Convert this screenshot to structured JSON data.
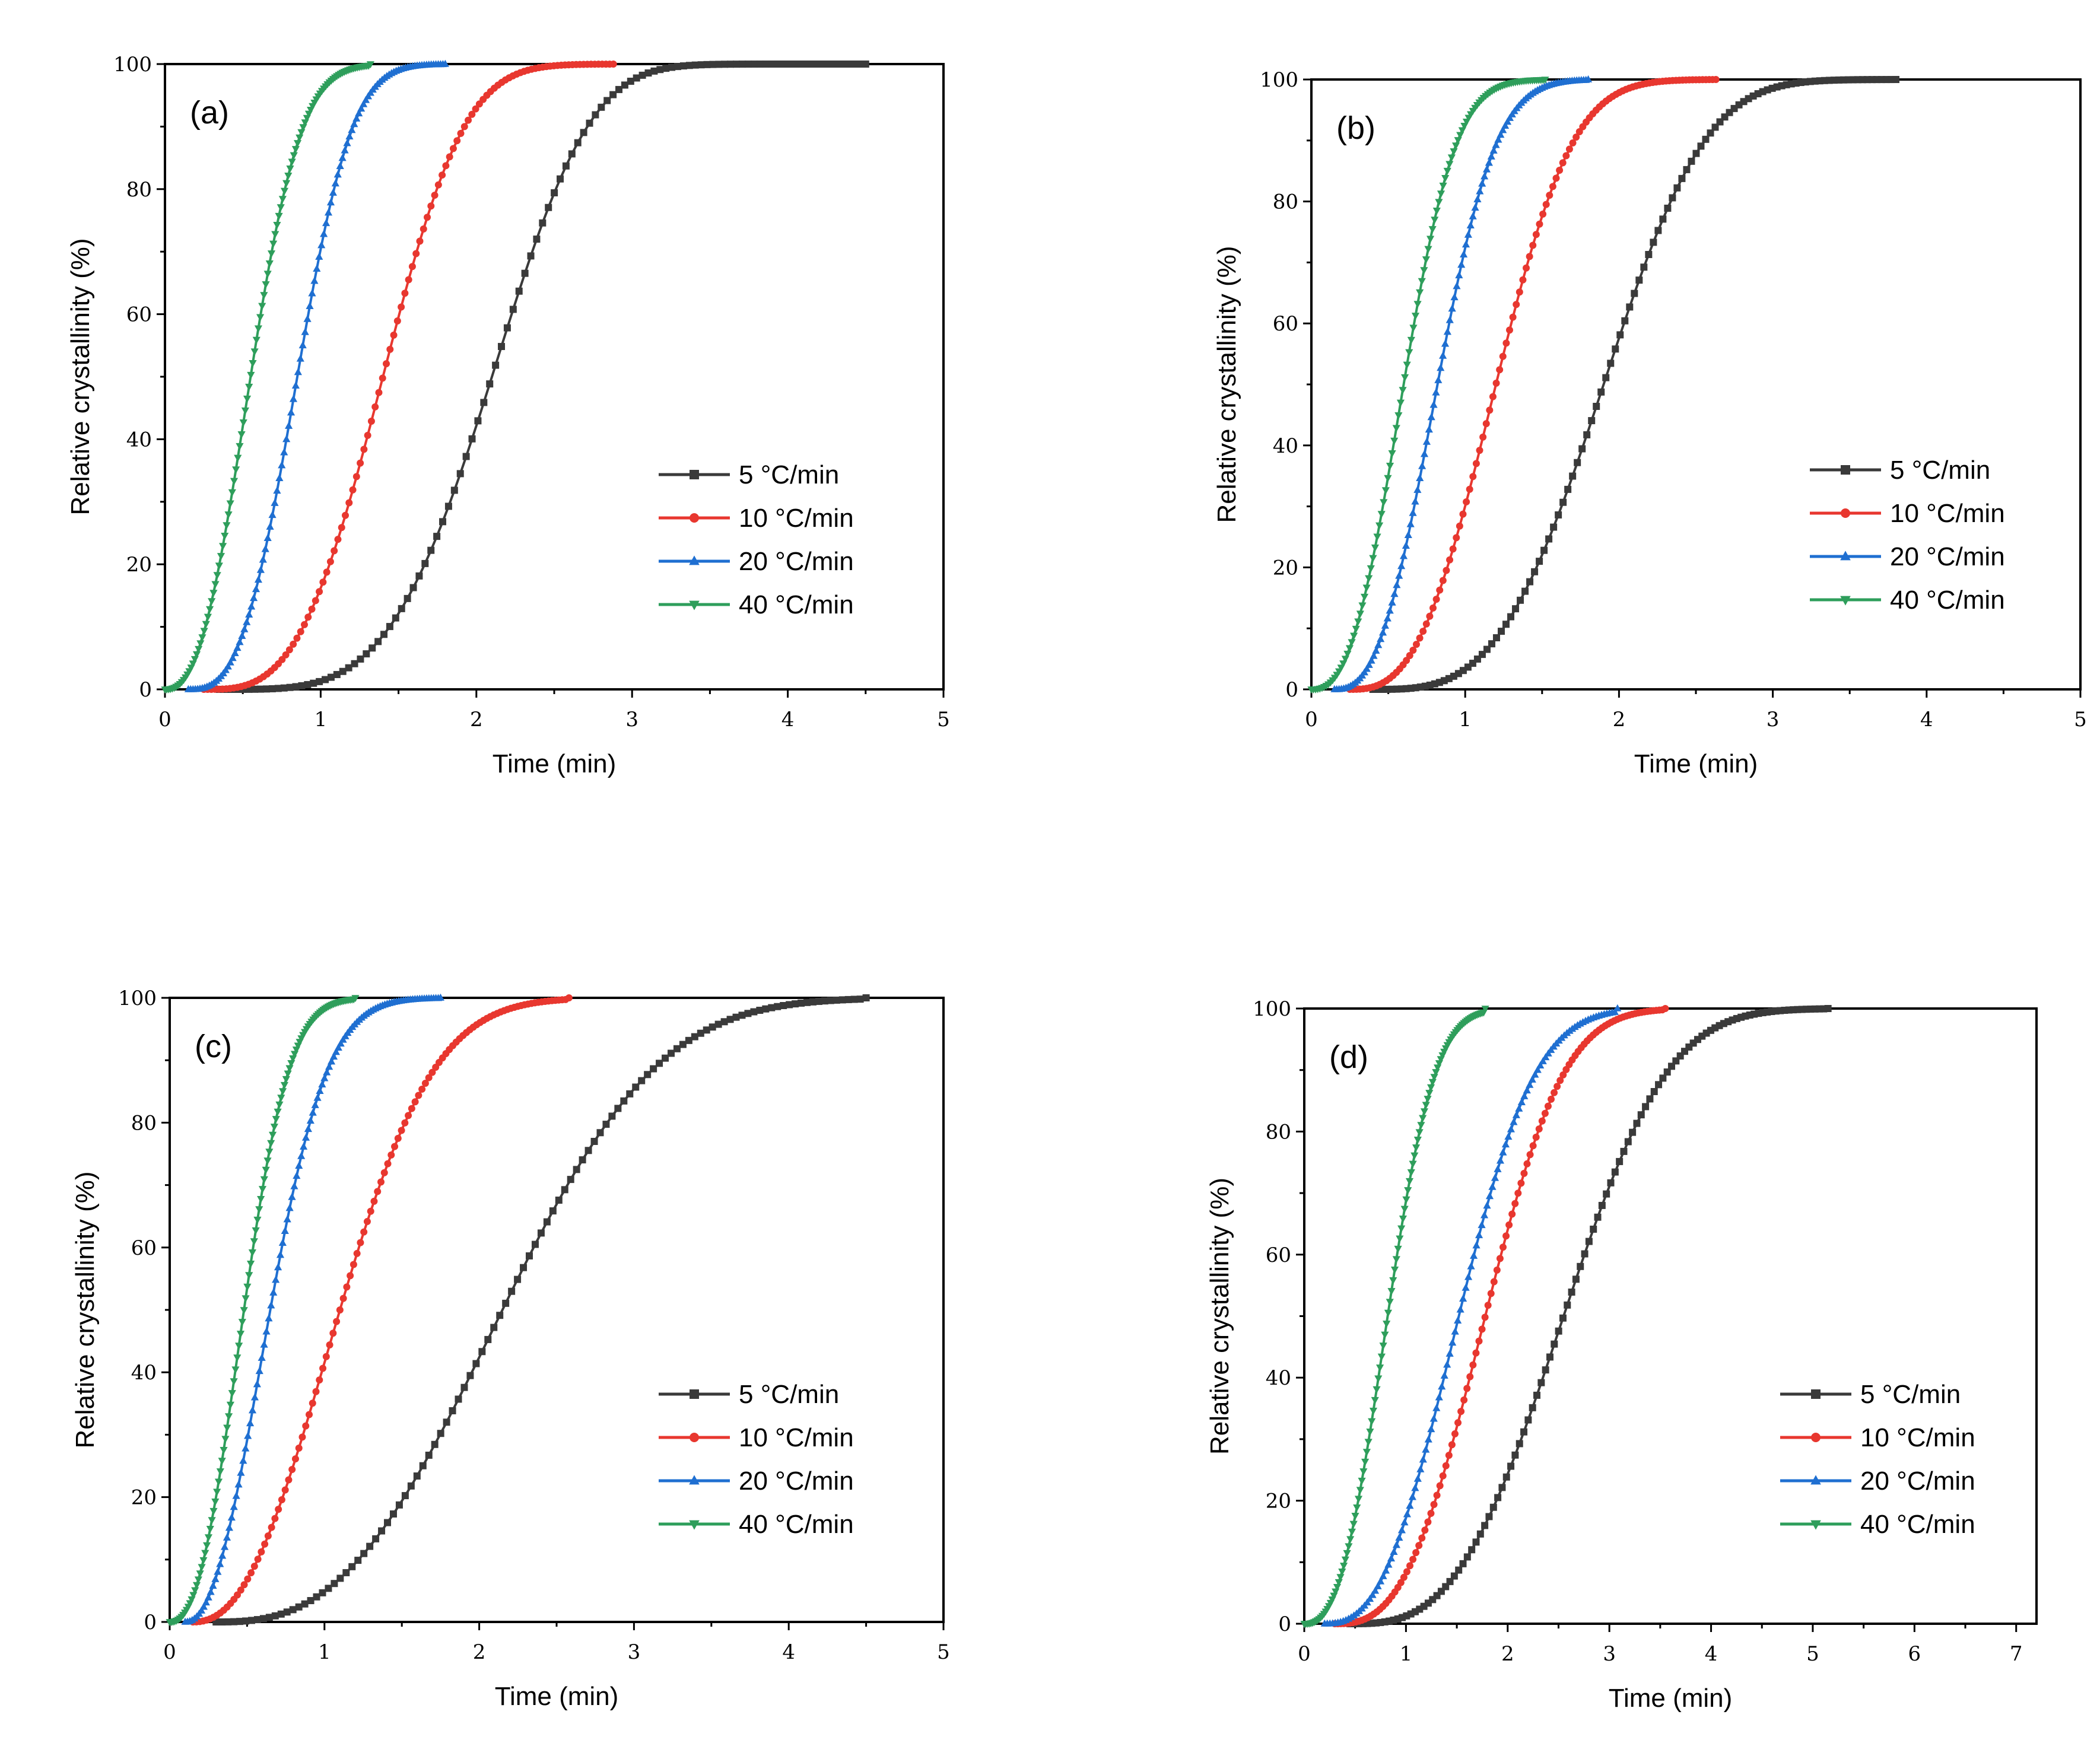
{
  "chart_data": [
    {
      "type": "line",
      "panel_label": "(a)",
      "xlabel": "Time (min)",
      "ylabel": "Relative crystallinity (%)",
      "xlim": [
        0,
        5
      ],
      "ylim": [
        0,
        100
      ],
      "x_ticks": [
        "0",
        "1",
        "2",
        "3",
        "4",
        "5"
      ],
      "y_ticks": [
        "0",
        "20",
        "40",
        "60",
        "80",
        "100"
      ],
      "legend_position": "center-right",
      "series": [
        {
          "name": "5 °C/min",
          "color": "#3a3a3a",
          "marker": "square",
          "t_start": 0.35,
          "t_half": 2.1,
          "t_end": 4.5,
          "n": 4.0
        },
        {
          "name": "10 °C/min",
          "color": "#e8372f",
          "marker": "circle",
          "t_start": 0.25,
          "t_half": 1.4,
          "t_end": 2.88,
          "n": 3.2
        },
        {
          "name": "20 °C/min",
          "color": "#1f6fd1",
          "marker": "triangle-up",
          "t_start": 0.15,
          "t_half": 0.85,
          "t_end": 1.8,
          "n": 2.9
        },
        {
          "name": "40 °C/min",
          "color": "#2e9e5b",
          "marker": "triangle-down",
          "t_start": 0.0,
          "t_half": 0.55,
          "t_end": 1.32,
          "n": 2.5
        }
      ]
    },
    {
      "type": "line",
      "panel_label": "(b)",
      "xlabel": "Time (min)",
      "ylabel": "Relative crystallinity (%)",
      "xlim": [
        0,
        5
      ],
      "ylim": [
        0,
        100
      ],
      "x_ticks": [
        "0",
        "1",
        "2",
        "3",
        "4",
        "5"
      ],
      "y_ticks": [
        "0",
        "20",
        "40",
        "60",
        "80",
        "100"
      ],
      "legend_position": "center-right",
      "series": [
        {
          "name": "5 °C/min",
          "color": "#3a3a3a",
          "marker": "square",
          "t_start": 0.4,
          "t_half": 1.9,
          "t_end": 3.8,
          "n": 3.3
        },
        {
          "name": "10 °C/min",
          "color": "#e8372f",
          "marker": "circle",
          "t_start": 0.25,
          "t_half": 1.2,
          "t_end": 2.63,
          "n": 2.8
        },
        {
          "name": "20 °C/min",
          "color": "#1f6fd1",
          "marker": "triangle-up",
          "t_start": 0.15,
          "t_half": 0.82,
          "t_end": 1.8,
          "n": 2.6
        },
        {
          "name": "40 °C/min",
          "color": "#2e9e5b",
          "marker": "triangle-down",
          "t_start": 0.0,
          "t_half": 0.6,
          "t_end": 1.52,
          "n": 2.6
        }
      ]
    },
    {
      "type": "line",
      "panel_label": "(c)",
      "xlabel": "Time (min)",
      "ylabel": "Relative crystallinity (%)",
      "xlim": [
        0,
        5
      ],
      "ylim": [
        0,
        100
      ],
      "x_ticks": [
        "0",
        "1",
        "2",
        "3",
        "4",
        "5"
      ],
      "y_ticks": [
        "0",
        "20",
        "40",
        "60",
        "80",
        "100"
      ],
      "legend_position": "center-right",
      "series": [
        {
          "name": "5 °C/min",
          "color": "#3a3a3a",
          "marker": "square",
          "t_start": 0.3,
          "t_half": 2.15,
          "t_end": 4.5,
          "n": 2.7
        },
        {
          "name": "10 °C/min",
          "color": "#e8372f",
          "marker": "circle",
          "t_start": 0.15,
          "t_half": 1.1,
          "t_end": 2.58,
          "n": 2.3
        },
        {
          "name": "20 °C/min",
          "color": "#1f6fd1",
          "marker": "triangle-up",
          "t_start": 0.1,
          "t_half": 0.65,
          "t_end": 1.75,
          "n": 2.2
        },
        {
          "name": "40 °C/min",
          "color": "#2e9e5b",
          "marker": "triangle-down",
          "t_start": 0.0,
          "t_half": 0.48,
          "t_end": 1.2,
          "n": 2.4
        }
      ]
    },
    {
      "type": "line",
      "panel_label": "(d)",
      "xlabel": "Time (min)",
      "ylabel": "Relative crystallinity (%)",
      "xlim": [
        0,
        7.2
      ],
      "ylim": [
        0,
        100
      ],
      "x_ticks": [
        "0",
        "1",
        "2",
        "3",
        "4",
        "5",
        "6",
        "7"
      ],
      "y_ticks": [
        "0",
        "20",
        "40",
        "60",
        "80",
        "100"
      ],
      "legend_position": "bottom-right",
      "series": [
        {
          "name": "5 °C/min",
          "color": "#3a3a3a",
          "marker": "square",
          "t_start": 0.45,
          "t_half": 2.55,
          "t_end": 5.15,
          "n": 3.0
        },
        {
          "name": "10 °C/min",
          "color": "#e8372f",
          "marker": "circle",
          "t_start": 0.3,
          "t_half": 1.78,
          "t_end": 3.55,
          "n": 2.8
        },
        {
          "name": "20 °C/min",
          "color": "#1f6fd1",
          "marker": "triangle-up",
          "t_start": 0.2,
          "t_half": 1.52,
          "t_end": 3.08,
          "n": 2.6
        },
        {
          "name": "40 °C/min",
          "color": "#2e9e5b",
          "marker": "triangle-down",
          "t_start": 0.0,
          "t_half": 0.82,
          "t_end": 1.78,
          "n": 2.6
        }
      ]
    }
  ]
}
